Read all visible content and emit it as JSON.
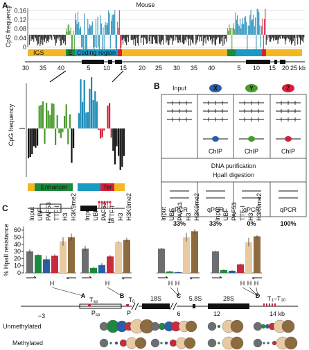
{
  "panel_a": {
    "label": "A",
    "title": "Mouse",
    "y_axis_label": "CpG frequency",
    "ylim": [
      0,
      0.17
    ],
    "yticks": [
      0,
      0.04,
      0.08,
      0.12,
      0.16
    ],
    "regions": [
      "IGS",
      "E",
      "Coding region"
    ],
    "scale_labels": [
      30,
      35,
      40,
      5,
      10,
      15,
      20,
      25,
      30,
      35,
      40,
      5,
      10,
      15,
      20,
      "25 kb"
    ],
    "zoom": {
      "y_axis_label": "CpG frequency",
      "regions": [
        "Enhancer",
        "Ter"
      ],
      "number": 15
    }
  },
  "panel_b": {
    "label": "B",
    "columns": [
      "Input",
      "X",
      "Y",
      "Z"
    ],
    "chip": "ChIP",
    "step": [
      "DNA purification",
      "HpaII digestion"
    ],
    "assay": "qPCR",
    "results": [
      "33%",
      "33%",
      "0%",
      "100%"
    ]
  },
  "panel_c": {
    "label": "C",
    "chart": {
      "type": "bar",
      "y_axis_label": "% HpaII resistance",
      "ylim": [
        0,
        65
      ],
      "yticks": [
        0,
        10,
        20,
        30,
        40,
        50,
        60
      ],
      "colors": {
        "Input": "#6d6e70",
        "UBF": "#1c8a3e",
        "PAF53": "#2a5ea8",
        "TTF-I": "#c92a3c",
        "H3": "#e9caa0",
        "H3K9me2": "#8c6b3f"
      },
      "groups": [
        {
          "categories": [
            "Input",
            "UBF",
            "PAF53",
            "TTF-I",
            "H3",
            "H3K9me2"
          ],
          "values": [
            30,
            25,
            19,
            24,
            44,
            50
          ],
          "errors": [
            3,
            1,
            5,
            2,
            6,
            5
          ]
        },
        {
          "categories": [
            "Input",
            "UBF",
            "PAF53",
            "TTF-I",
            "H3",
            "H3K9me2"
          ],
          "values": [
            34,
            7,
            11,
            23,
            43,
            46
          ],
          "errors": [
            4,
            1,
            3,
            2,
            1,
            3
          ]
        },
        {
          "categories": [
            "Input",
            "UBF",
            "PAF53",
            "H3",
            "H3K9me2"
          ],
          "values": [
            34,
            2,
            1,
            50,
            58
          ],
          "errors": [
            1,
            1,
            1,
            6,
            3
          ]
        },
        {
          "categories": [
            "Input",
            "UBF",
            "PAF53",
            "TTF-I",
            "H3",
            "H3K9me2"
          ],
          "values": [
            30,
            4,
            3,
            12,
            43,
            51
          ],
          "errors": [
            1,
            1,
            1,
            1,
            6,
            2
          ]
        }
      ]
    },
    "site": "H",
    "map": {
      "sites": [
        "A",
        "B",
        "C",
        "D"
      ],
      "genes": [
        "18S",
        "5.8S",
        "28S"
      ],
      "coords": [
        "−3",
        "6",
        "12",
        "14 kb"
      ],
      "t_sp": [
        "T",
        "sp"
      ],
      "t_0": [
        "T",
        "0"
      ],
      "p_sp": [
        "P",
        "sp"
      ],
      "p": [
        "P"
      ],
      "t_range": [
        "T",
        "1",
        "–T",
        "10"
      ]
    },
    "row_labels": [
      "Unmethylated",
      "Methylated"
    ]
  }
}
